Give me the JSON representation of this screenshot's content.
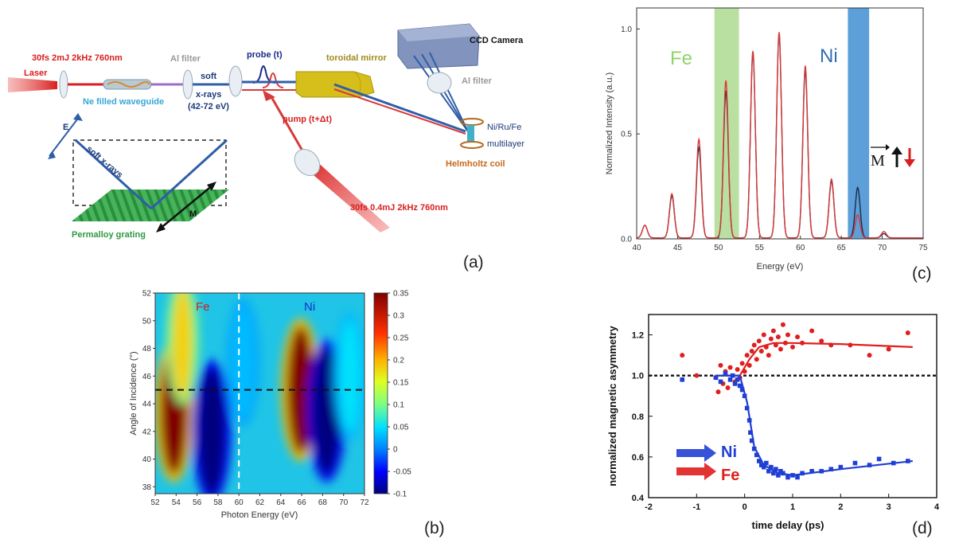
{
  "panels": {
    "a": {
      "letter": "(a)",
      "labels": {
        "pulse_top": "30fs 2mJ 2kHz 760nm",
        "laser": "Laser",
        "al_filter_1": "Al filter",
        "waveguide": "Ne filled waveguide",
        "soft": "soft",
        "xrays": "x-rays",
        "energy_range": "(42-72 eV)",
        "probe": "probe (t)",
        "toroidal": "toroidal mirror",
        "ccd": "CCD Camera",
        "al_filter_2": "Al filter",
        "pump": "pump (t+Δt)",
        "sample_1": "Ni/Ru/Fe",
        "sample_2": "multilayer",
        "helmholtz": "Helmholtz coil",
        "pulse_bottom": "30fs 0.4mJ 2kHz 760nm",
        "e_vec": "E",
        "soft_xrays_diag": "soft x-rays",
        "m_vec": "M",
        "grating": "Permalloy grating"
      }
    },
    "b": {
      "letter": "(b)",
      "xlabel": "Photon Energy (eV)",
      "ylabel": "Angle of Incidence (°)",
      "fe_label": "Fe",
      "ni_label": "Ni",
      "colors": {
        "fe": "#d81e1e",
        "ni": "#1b2fc8"
      }
    },
    "c": {
      "letter": "(c)",
      "fe_label": "Fe",
      "ni_label": "Ni",
      "m_label": "M",
      "colors": {
        "fe_band": "#a9d88a",
        "ni_band": "#3f8ed2",
        "fe_text": "#8fd46a",
        "ni_text": "#2f6eb5",
        "trace_a": "#d83a3a",
        "trace_b": "#1d2a4a"
      }
    },
    "d": {
      "letter": "(d)",
      "ni_label": "Ni",
      "fe_label": "Fe",
      "colors": {
        "ni": "#1f3fd4",
        "fe": "#e01e1e"
      }
    }
  },
  "chart_data": [
    {
      "panel": "b",
      "type": "heatmap",
      "xlabel": "Photon Energy (eV)",
      "ylabel": "Angle of Incidence (°)",
      "xlim": [
        52,
        72
      ],
      "ylim": [
        37.5,
        52
      ],
      "x_ticks": [
        "52",
        "54",
        "56",
        "58",
        "60",
        "62",
        "64",
        "66",
        "68",
        "70",
        "72"
      ],
      "y_ticks": [
        "38",
        "40",
        "42",
        "44",
        "46",
        "48",
        "50",
        "52"
      ],
      "colorbar": {
        "min": -0.1,
        "max": 0.35,
        "ticks": [
          "0.35",
          "0.3",
          "0.25",
          "0.2",
          "0.15",
          "0.1",
          "0.05",
          "0",
          "-0.05",
          "-0.1"
        ]
      },
      "markers": {
        "vertical_line_x": 60,
        "horizontal_line_y": 45
      },
      "features": [
        {
          "x": 53.8,
          "y": 43.5,
          "value": 0.35
        },
        {
          "x": 54.6,
          "y": 48.5,
          "value": 0.18
        },
        {
          "x": 57.4,
          "y": 42.0,
          "value": -0.1
        },
        {
          "x": 60.4,
          "y": 47.0,
          "value": 0.03
        },
        {
          "x": 65.9,
          "y": 45.0,
          "value": 0.35
        },
        {
          "x": 68.4,
          "y": 43.5,
          "value": -0.1
        },
        {
          "x": 70.6,
          "y": 46.0,
          "value": 0.05
        }
      ]
    },
    {
      "panel": "c",
      "type": "line",
      "xlabel": "Energy (eV)",
      "ylabel": "Normalized Intensity (a.u.)",
      "xlim": [
        40,
        75
      ],
      "ylim": [
        0,
        1.1
      ],
      "x_ticks": [
        "40",
        "45",
        "50",
        "55",
        "60",
        "65",
        "70",
        "75"
      ],
      "y_ticks": [
        "0.0",
        "0.5",
        "1.0"
      ],
      "bands": [
        {
          "name": "Fe",
          "from": 49.5,
          "to": 52.5
        },
        {
          "name": "Ni",
          "from": 65.8,
          "to": 68.4
        }
      ],
      "harmonic_peaks": {
        "energy_ev": [
          41.0,
          44.3,
          47.6,
          50.9,
          54.2,
          57.4,
          60.6,
          63.8,
          67.0,
          70.2
        ],
        "series": [
          {
            "values": [
              0.06,
              0.21,
              0.47,
              0.75,
              0.89,
              0.98,
              0.82,
              0.28,
              0.11,
              0.03
            ]
          },
          {
            "values": [
              0.06,
              0.2,
              0.43,
              0.7,
              0.88,
              0.97,
              0.8,
              0.27,
              0.24,
              0.02
            ]
          }
        ]
      }
    },
    {
      "panel": "d",
      "type": "scatter",
      "xlabel": "time delay (ps)",
      "ylabel": "normalized magnetic asymmetry",
      "xlim": [
        -2,
        4
      ],
      "ylim": [
        0.4,
        1.3
      ],
      "x_ticks": [
        "-2",
        "-1",
        "0",
        "1",
        "2",
        "3",
        "4"
      ],
      "y_ticks": [
        "0.4",
        "0.6",
        "0.8",
        "1.0",
        "1.2"
      ],
      "reference_line": 1.0,
      "series": [
        {
          "name": "Fe",
          "points": [
            [
              -1.3,
              1.1
            ],
            [
              -1.0,
              1.0
            ],
            [
              -0.6,
              0.99
            ],
            [
              -0.55,
              0.92
            ],
            [
              -0.5,
              1.05
            ],
            [
              -0.45,
              0.96
            ],
            [
              -0.4,
              1.02
            ],
            [
              -0.35,
              0.94
            ],
            [
              -0.3,
              1.04
            ],
            [
              -0.2,
              0.97
            ],
            [
              -0.15,
              1.03
            ],
            [
              -0.1,
              0.99
            ],
            [
              -0.05,
              1.06
            ],
            [
              0.0,
              1.02
            ],
            [
              0.05,
              1.1
            ],
            [
              0.1,
              1.05
            ],
            [
              0.15,
              1.12
            ],
            [
              0.2,
              1.15
            ],
            [
              0.25,
              1.08
            ],
            [
              0.3,
              1.17
            ],
            [
              0.35,
              1.12
            ],
            [
              0.4,
              1.2
            ],
            [
              0.45,
              1.14
            ],
            [
              0.5,
              1.1
            ],
            [
              0.55,
              1.18
            ],
            [
              0.6,
              1.22
            ],
            [
              0.65,
              1.15
            ],
            [
              0.7,
              1.19
            ],
            [
              0.75,
              1.13
            ],
            [
              0.8,
              1.25
            ],
            [
              0.85,
              1.16
            ],
            [
              0.9,
              1.2
            ],
            [
              1.0,
              1.14
            ],
            [
              1.1,
              1.19
            ],
            [
              1.2,
              1.16
            ],
            [
              1.4,
              1.22
            ],
            [
              1.6,
              1.17
            ],
            [
              1.8,
              1.15
            ],
            [
              2.2,
              1.15
            ],
            [
              2.6,
              1.1
            ],
            [
              3.0,
              1.13
            ],
            [
              3.4,
              1.21
            ]
          ],
          "fit": [
            [
              -0.6,
              1.0
            ],
            [
              -0.1,
              1.0
            ],
            [
              0.1,
              1.08
            ],
            [
              0.3,
              1.14
            ],
            [
              0.6,
              1.16
            ],
            [
              1.0,
              1.16
            ],
            [
              2.0,
              1.155
            ],
            [
              3.5,
              1.14
            ]
          ]
        },
        {
          "name": "Ni",
          "points": [
            [
              -1.3,
              0.98
            ],
            [
              -0.6,
              0.99
            ],
            [
              -0.5,
              0.97
            ],
            [
              -0.4,
              1.01
            ],
            [
              -0.3,
              0.98
            ],
            [
              -0.25,
              1.0
            ],
            [
              -0.2,
              0.96
            ],
            [
              -0.15,
              0.98
            ],
            [
              -0.1,
              0.95
            ],
            [
              -0.05,
              0.93
            ],
            [
              0.0,
              0.9
            ],
            [
              0.05,
              0.84
            ],
            [
              0.1,
              0.78
            ],
            [
              0.12,
              0.72
            ],
            [
              0.15,
              0.68
            ],
            [
              0.2,
              0.64
            ],
            [
              0.25,
              0.61
            ],
            [
              0.3,
              0.58
            ],
            [
              0.35,
              0.56
            ],
            [
              0.4,
              0.55
            ],
            [
              0.45,
              0.57
            ],
            [
              0.5,
              0.53
            ],
            [
              0.55,
              0.55
            ],
            [
              0.6,
              0.52
            ],
            [
              0.65,
              0.54
            ],
            [
              0.7,
              0.51
            ],
            [
              0.75,
              0.53
            ],
            [
              0.8,
              0.52
            ],
            [
              0.9,
              0.5
            ],
            [
              1.0,
              0.51
            ],
            [
              1.1,
              0.5
            ],
            [
              1.2,
              0.52
            ],
            [
              1.4,
              0.53
            ],
            [
              1.6,
              0.53
            ],
            [
              1.8,
              0.54
            ],
            [
              2.0,
              0.55
            ],
            [
              2.3,
              0.57
            ],
            [
              2.6,
              0.56
            ],
            [
              2.8,
              0.59
            ],
            [
              3.1,
              0.57
            ],
            [
              3.4,
              0.58
            ]
          ],
          "fit": [
            [
              -0.6,
              1.0
            ],
            [
              -0.1,
              1.0
            ],
            [
              0.05,
              0.87
            ],
            [
              0.2,
              0.65
            ],
            [
              0.4,
              0.56
            ],
            [
              0.7,
              0.52
            ],
            [
              1.0,
              0.51
            ],
            [
              2.0,
              0.54
            ],
            [
              3.5,
              0.58
            ]
          ]
        }
      ]
    }
  ]
}
